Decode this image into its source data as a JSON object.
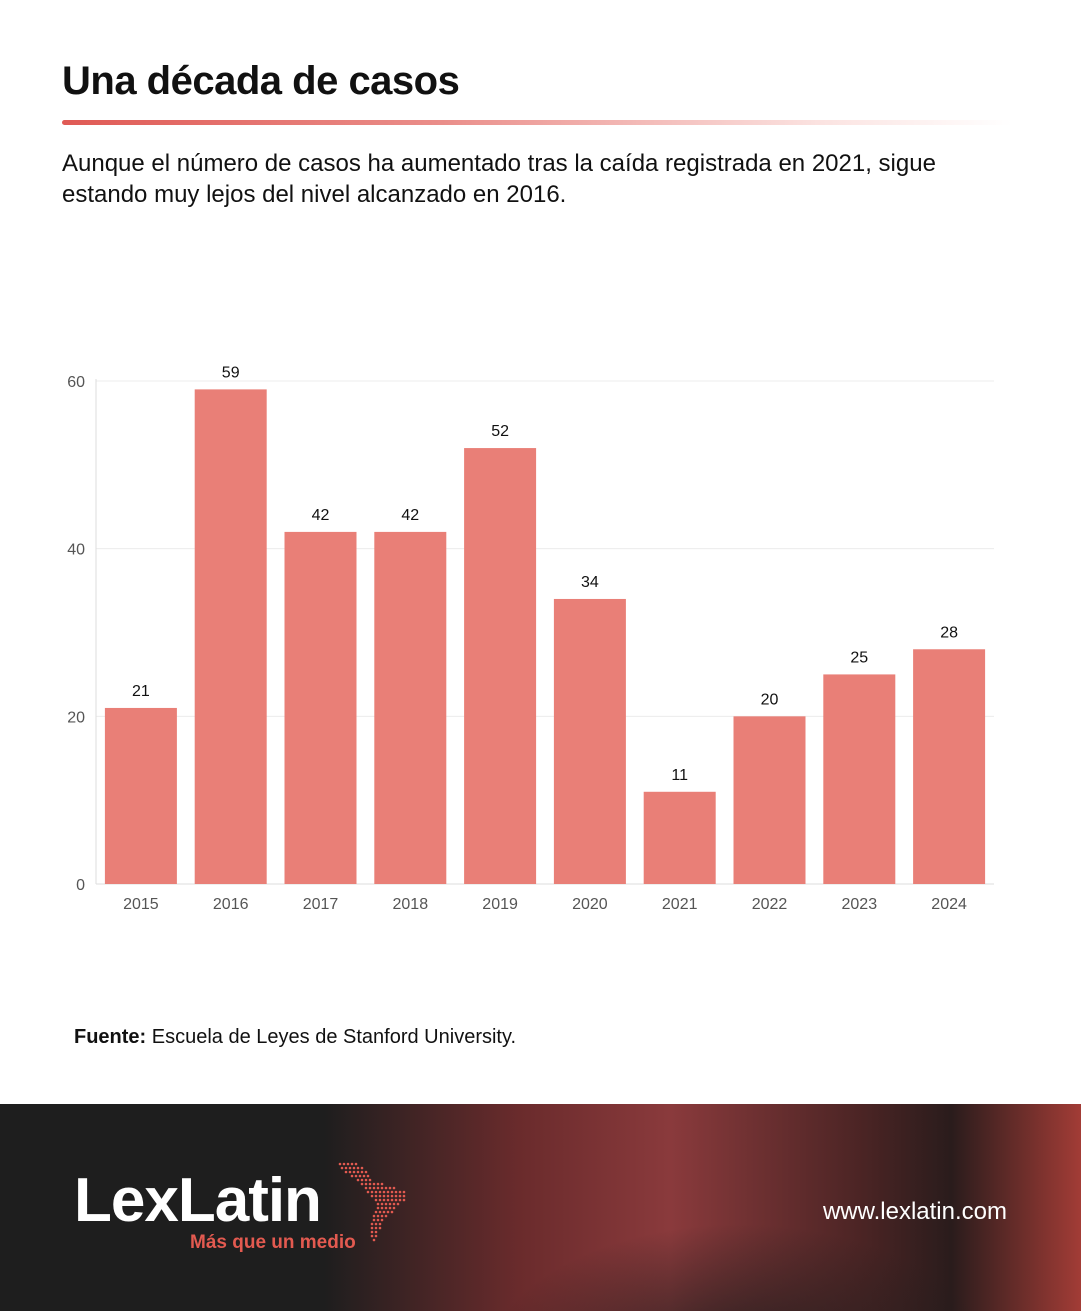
{
  "header": {
    "title": "Una década de casos",
    "subtitle": "Aunque el número de casos ha aumentado tras la caída registrada en 2021, sigue estando muy lejos del nivel alcanzado en 2016."
  },
  "chart_data": {
    "type": "bar",
    "categories": [
      "2015",
      "2016",
      "2017",
      "2018",
      "2019",
      "2020",
      "2021",
      "2022",
      "2023",
      "2024"
    ],
    "values": [
      21,
      59,
      42,
      42,
      52,
      34,
      11,
      20,
      25,
      28
    ],
    "ylim": [
      0,
      60
    ],
    "yticks": [
      0,
      20,
      40,
      60
    ],
    "bar_color": "#e97f77",
    "grid": true,
    "data_labels": true
  },
  "source": {
    "label": "Fuente:",
    "text": "Escuela de Leyes de Stanford University."
  },
  "footer": {
    "brand": "LexLatin",
    "tagline": "Más que un medio",
    "url": "www.lexlatin.com",
    "logo_icon": "latin-america-map-icon",
    "tagline_color": "#e35a50"
  }
}
